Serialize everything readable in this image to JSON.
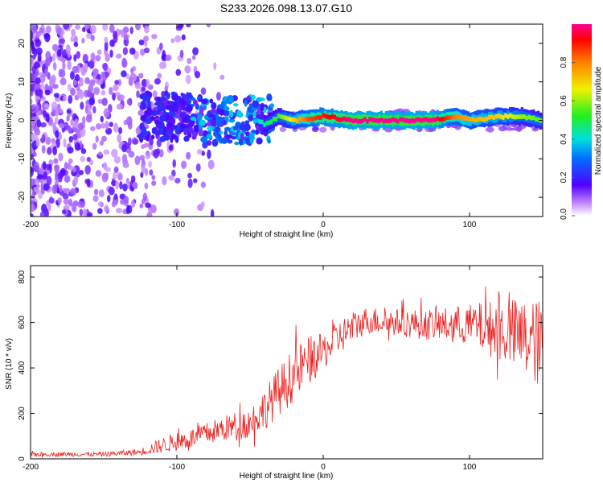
{
  "title": "S233.2026.098.13.07.G10",
  "chart_data": [
    {
      "type": "heatmap",
      "xlabel": "Height of straight line (km)",
      "ylabel": "Frequency (Hz)",
      "xlim": [
        -200,
        150
      ],
      "ylim": [
        -25,
        25
      ],
      "xticks": [
        -200,
        -100,
        0,
        100
      ],
      "yticks": [
        -20,
        -10,
        0,
        10,
        20
      ],
      "colorbar": {
        "label": "Normalized spectral amplitude",
        "range": [
          0,
          1
        ],
        "ticks": [
          0.0,
          0.2,
          0.4,
          0.6,
          0.8
        ],
        "tick_labels": [
          "0.0",
          "0.2",
          "0.4",
          "0.6",
          "0.8"
        ]
      },
      "ridge_profile": [
        {
          "x": -120,
          "freq": 3,
          "amp": 0.15
        },
        {
          "x": -80,
          "freq": 2,
          "amp": 0.25
        },
        {
          "x": -50,
          "freq": 1,
          "amp": 0.3
        },
        {
          "x": -40,
          "freq": -1,
          "amp": 0.45
        },
        {
          "x": -30,
          "freq": 1,
          "amp": 0.55
        },
        {
          "x": -20,
          "freq": 0,
          "amp": 0.7
        },
        {
          "x": -10,
          "freq": 0.5,
          "amp": 0.85
        },
        {
          "x": 0,
          "freq": 1,
          "amp": 0.9
        },
        {
          "x": 20,
          "freq": 0,
          "amp": 1.0
        },
        {
          "x": 75,
          "freq": 0,
          "amp": 1.0
        },
        {
          "x": 90,
          "freq": 1,
          "amp": 0.8
        },
        {
          "x": 100,
          "freq": 0,
          "amp": 0.75
        },
        {
          "x": 120,
          "freq": 1,
          "amp": 0.7
        },
        {
          "x": 135,
          "freq": 1,
          "amp": 0.6
        },
        {
          "x": 150,
          "freq": 0,
          "amp": 0.55
        }
      ]
    },
    {
      "type": "line",
      "xlabel": "Height of straight line (km)",
      "ylabel": "SNR (10 * v/v)",
      "xlim": [
        -200,
        150
      ],
      "ylim": [
        0,
        850
      ],
      "xticks": [
        -200,
        -100,
        0,
        100
      ],
      "yticks": [
        0,
        200,
        400,
        600,
        800
      ],
      "series": [
        {
          "name": "SNR",
          "color": "#ee2020",
          "trend_x": [
            -200,
            -150,
            -125,
            -110,
            -90,
            -70,
            -50,
            -40,
            -30,
            -20,
            -10,
            0,
            10,
            20,
            30,
            50,
            75,
            100,
            125,
            150
          ],
          "trend_y": [
            20,
            20,
            30,
            60,
            90,
            130,
            160,
            220,
            300,
            370,
            430,
            470,
            530,
            580,
            610,
            600,
            590,
            590,
            560,
            500
          ],
          "noise_amplitude": [
            10,
            10,
            15,
            35,
            45,
            55,
            70,
            90,
            110,
            120,
            110,
            80,
            80,
            70,
            60,
            60,
            70,
            90,
            150,
            200
          ]
        }
      ]
    }
  ]
}
